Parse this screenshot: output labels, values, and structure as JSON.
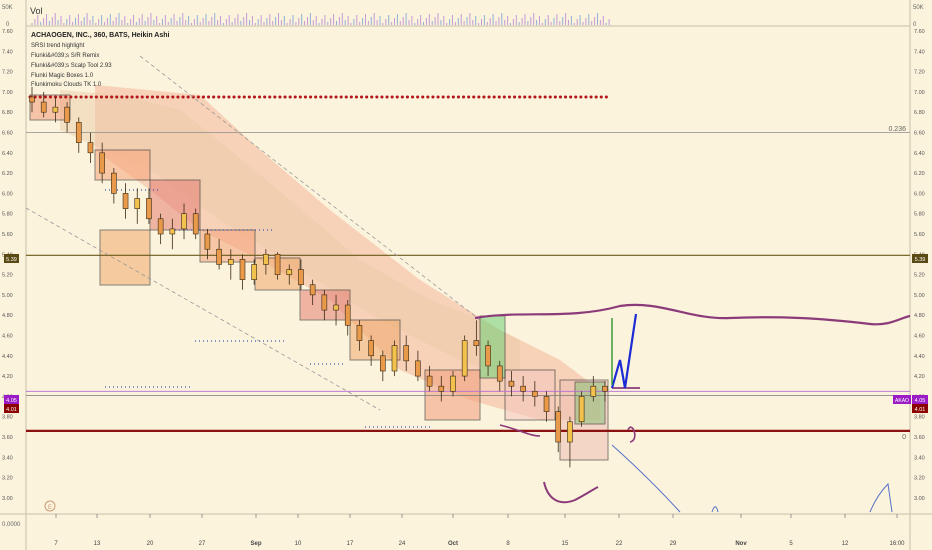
{
  "chart_data": {
    "type": "candlestick",
    "title": "ACHAOGEN, INC., 360, BATS, Heikin Ashi",
    "indicators": [
      "SRSI trend highlight",
      "Flunki&#039;s S/R Remix",
      "Flunki&#039;s Scalp Tool 2.93",
      "Flunki Magic Boxes 1.0",
      "Flunkimoku Clouds TK 1.0"
    ],
    "volume_pane": {
      "label": "Vol",
      "ticks_left": [
        "50K",
        "0"
      ],
      "ticks_right": [
        "50K",
        "0"
      ]
    },
    "ylim": [
      2.9,
      7.62
    ],
    "y_ticks": [
      "7.60",
      "7.40",
      "7.20",
      "7.00",
      "6.80",
      "6.60",
      "6.40",
      "6.20",
      "6.00",
      "5.80",
      "5.60",
      "5.40",
      "5.20",
      "5.00",
      "4.80",
      "4.60",
      "4.40",
      "4.20",
      "4.00",
      "3.80",
      "3.60",
      "3.40",
      "3.20",
      "3.00"
    ],
    "y_tick_values": [
      7.6,
      7.4,
      7.2,
      7.0,
      6.8,
      6.6,
      6.4,
      6.2,
      6.0,
      5.8,
      5.6,
      5.4,
      5.2,
      5.0,
      4.8,
      4.6,
      4.4,
      4.2,
      4.0,
      3.8,
      3.6,
      3.4,
      3.2,
      3.0
    ],
    "x_ticks": [
      "7",
      "13",
      "20",
      "27",
      "Sep",
      "10",
      "17",
      "24",
      "Oct",
      "8",
      "15",
      "22",
      "29",
      "Nov",
      "5",
      "12",
      "16:00"
    ],
    "bottom_left_label": "0.0000",
    "price_labels": {
      "left_key_level": "5.39",
      "right_key_level": "5.39",
      "left_last": "4.05",
      "left_prev": "4.01",
      "right_symbol": "AKAO",
      "right_last": "4.05",
      "right_prev": "4.01"
    },
    "key_levels": {
      "support_red": 3.66,
      "resistance_dotted": 6.95,
      "fib_0236": 6.6,
      "level_539": 5.39,
      "level_401": 4.01,
      "level_405": 4.05
    },
    "fib_labels": {
      "fib_0236": "0.236",
      "fib_0": "0"
    },
    "candles": [
      {
        "o": 6.95,
        "h": 7.05,
        "l": 6.8,
        "c": 6.9
      },
      {
        "o": 6.9,
        "h": 7.0,
        "l": 6.75,
        "c": 6.8
      },
      {
        "o": 6.8,
        "h": 6.95,
        "l": 6.7,
        "c": 6.85
      },
      {
        "o": 6.85,
        "h": 6.9,
        "l": 6.6,
        "c": 6.7
      },
      {
        "o": 6.7,
        "h": 6.75,
        "l": 6.4,
        "c": 6.5
      },
      {
        "o": 6.5,
        "h": 6.6,
        "l": 6.3,
        "c": 6.4
      },
      {
        "o": 6.4,
        "h": 6.5,
        "l": 6.1,
        "c": 6.2
      },
      {
        "o": 6.2,
        "h": 6.25,
        "l": 5.9,
        "c": 6.0
      },
      {
        "o": 6.0,
        "h": 6.1,
        "l": 5.75,
        "c": 5.85
      },
      {
        "o": 5.85,
        "h": 6.05,
        "l": 5.7,
        "c": 5.95
      },
      {
        "o": 5.95,
        "h": 6.05,
        "l": 5.7,
        "c": 5.75
      },
      {
        "o": 5.75,
        "h": 5.8,
        "l": 5.5,
        "c": 5.6
      },
      {
        "o": 5.6,
        "h": 5.75,
        "l": 5.45,
        "c": 5.65
      },
      {
        "o": 5.65,
        "h": 5.9,
        "l": 5.55,
        "c": 5.8
      },
      {
        "o": 5.8,
        "h": 5.85,
        "l": 5.55,
        "c": 5.6
      },
      {
        "o": 5.6,
        "h": 5.65,
        "l": 5.35,
        "c": 5.45
      },
      {
        "o": 5.45,
        "h": 5.55,
        "l": 5.25,
        "c": 5.3
      },
      {
        "o": 5.3,
        "h": 5.45,
        "l": 5.15,
        "c": 5.35
      },
      {
        "o": 5.35,
        "h": 5.4,
        "l": 5.05,
        "c": 5.15
      },
      {
        "o": 5.15,
        "h": 5.35,
        "l": 5.1,
        "c": 5.3
      },
      {
        "o": 5.3,
        "h": 5.45,
        "l": 5.2,
        "c": 5.4
      },
      {
        "o": 5.4,
        "h": 5.42,
        "l": 5.15,
        "c": 5.2
      },
      {
        "o": 5.2,
        "h": 5.3,
        "l": 5.1,
        "c": 5.25
      },
      {
        "o": 5.25,
        "h": 5.35,
        "l": 5.05,
        "c": 5.1
      },
      {
        "o": 5.1,
        "h": 5.15,
        "l": 4.9,
        "c": 5.0
      },
      {
        "o": 5.0,
        "h": 5.05,
        "l": 4.75,
        "c": 4.85
      },
      {
        "o": 4.85,
        "h": 5.0,
        "l": 4.7,
        "c": 4.9
      },
      {
        "o": 4.9,
        "h": 4.95,
        "l": 4.6,
        "c": 4.7
      },
      {
        "o": 4.7,
        "h": 4.75,
        "l": 4.45,
        "c": 4.55
      },
      {
        "o": 4.55,
        "h": 4.6,
        "l": 4.3,
        "c": 4.4
      },
      {
        "o": 4.4,
        "h": 4.45,
        "l": 4.15,
        "c": 4.25
      },
      {
        "o": 4.25,
        "h": 4.55,
        "l": 4.2,
        "c": 4.5
      },
      {
        "o": 4.5,
        "h": 4.6,
        "l": 4.25,
        "c": 4.35
      },
      {
        "o": 4.35,
        "h": 4.45,
        "l": 4.15,
        "c": 4.2
      },
      {
        "o": 4.2,
        "h": 4.3,
        "l": 4.05,
        "c": 4.1
      },
      {
        "o": 4.1,
        "h": 4.2,
        "l": 3.95,
        "c": 4.05
      },
      {
        "o": 4.05,
        "h": 4.25,
        "l": 4.0,
        "c": 4.2
      },
      {
        "o": 4.2,
        "h": 4.6,
        "l": 4.15,
        "c": 4.55
      },
      {
        "o": 4.55,
        "h": 4.75,
        "l": 4.4,
        "c": 4.5
      },
      {
        "o": 4.5,
        "h": 4.55,
        "l": 4.2,
        "c": 4.3
      },
      {
        "o": 4.3,
        "h": 4.35,
        "l": 4.05,
        "c": 4.15
      },
      {
        "o": 4.15,
        "h": 4.25,
        "l": 4.0,
        "c": 4.1
      },
      {
        "o": 4.1,
        "h": 4.2,
        "l": 3.95,
        "c": 4.05
      },
      {
        "o": 4.05,
        "h": 4.15,
        "l": 3.9,
        "c": 4.0
      },
      {
        "o": 4.0,
        "h": 4.05,
        "l": 3.75,
        "c": 3.85
      },
      {
        "o": 3.85,
        "h": 3.9,
        "l": 3.45,
        "c": 3.55
      },
      {
        "o": 3.55,
        "h": 3.8,
        "l": 3.3,
        "c": 3.75
      },
      {
        "o": 3.75,
        "h": 4.05,
        "l": 3.7,
        "c": 4.0
      },
      {
        "o": 4.0,
        "h": 4.2,
        "l": 3.95,
        "c": 4.1
      },
      {
        "o": 4.1,
        "h": 4.15,
        "l": 3.95,
        "c": 4.05
      }
    ]
  }
}
